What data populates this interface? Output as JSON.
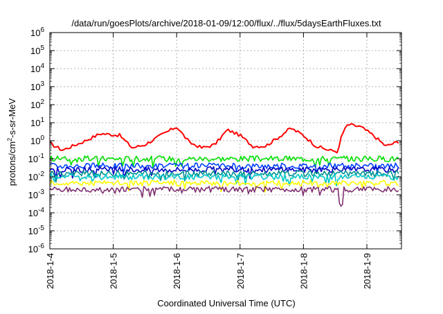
{
  "chart_data": {
    "type": "line",
    "title": "/data/run/goesPlots/archive/2018-01-09/12:00/flux/../flux/5daysEarthFluxes.txt",
    "xlabel": "Coordinated Universal Time (UTC)",
    "ylabel": {
      "prefix": "protons/cm",
      "sup": "2",
      "suffix": "-s-sr-MeV"
    },
    "x_ticks": [
      "2018-1-4",
      "2018-1-5",
      "2018-1-6",
      "2018-1-7",
      "2018-1-8",
      "2018-1-9"
    ],
    "x_range_days": [
      0,
      5.5
    ],
    "y_scale": "log",
    "y_range": [
      1e-06,
      1000000.0
    ],
    "y_ticks": [
      {
        "base": "10",
        "exp": "-6"
      },
      {
        "base": "10",
        "exp": "-5"
      },
      {
        "base": "10",
        "exp": "-4"
      },
      {
        "base": "10",
        "exp": "-3"
      },
      {
        "base": "10",
        "exp": "-2"
      },
      {
        "base": "10",
        "exp": "-1"
      },
      {
        "base": "10",
        "exp": "0"
      },
      {
        "base": "10",
        "exp": "1"
      },
      {
        "base": "10",
        "exp": "2"
      },
      {
        "base": "10",
        "exp": "3"
      },
      {
        "base": "10",
        "exp": "4"
      },
      {
        "base": "10",
        "exp": "5"
      },
      {
        "base": "10",
        "exp": "6"
      }
    ],
    "grid": true,
    "legend": "none",
    "series": [
      {
        "color": "#ff0000",
        "style": "diurnal",
        "x": [
          0.0,
          0.2,
          0.5,
          0.8,
          1.1,
          1.3,
          1.5,
          1.8,
          2.0,
          2.2,
          2.4,
          2.6,
          2.8,
          3.0,
          3.2,
          3.4,
          3.6,
          3.8,
          4.0,
          4.2,
          4.4,
          4.55,
          4.6,
          4.7,
          4.9,
          5.1,
          5.3,
          5.5
        ],
        "y": [
          0.7,
          0.3,
          0.8,
          2.5,
          2.0,
          0.4,
          0.6,
          2.5,
          6.0,
          0.8,
          0.4,
          0.6,
          4.0,
          2.0,
          0.5,
          0.5,
          1.5,
          5.0,
          2.0,
          0.5,
          0.3,
          0.25,
          2.0,
          8.0,
          6.0,
          2.0,
          0.5,
          0.9
        ]
      },
      {
        "color": "#00e000",
        "style": "noisy",
        "x": [
          0,
          5.5
        ],
        "y": [
          0.1,
          0.1
        ]
      },
      {
        "color": "#0040ff",
        "style": "noisy",
        "x": [
          0,
          5.5
        ],
        "y": [
          0.04,
          0.04
        ]
      },
      {
        "color": "#0000c0",
        "style": "noisy",
        "x": [
          0,
          5.5
        ],
        "y": [
          0.025,
          0.025
        ]
      },
      {
        "color": "#009090",
        "style": "noisy",
        "x": [
          0,
          5.5
        ],
        "y": [
          0.015,
          0.015
        ]
      },
      {
        "color": "#00c8c8",
        "style": "noisy",
        "x": [
          0,
          5.5
        ],
        "y": [
          0.01,
          0.01
        ]
      },
      {
        "color": "#ffff00",
        "style": "noisy",
        "x": [
          0,
          5.5
        ],
        "y": [
          0.0045,
          0.0045
        ]
      },
      {
        "color": "#803070",
        "style": "noisy",
        "x": [
          0,
          5.5
        ],
        "y": [
          0.002,
          0.002
        ]
      }
    ]
  }
}
